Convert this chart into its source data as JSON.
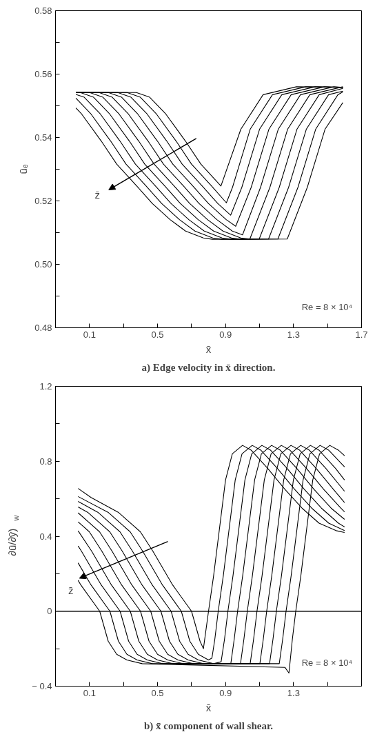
{
  "chart_data": [
    {
      "type": "line",
      "title": "a) Edge velocity in x̄ direction.",
      "xlabel": "x̄",
      "ylabel": "ūₑ",
      "xlim": [
        -0.1,
        1.7
      ],
      "xticks": [
        0.1,
        {
          "value": 0.3,
          "label": null
        },
        0.5,
        {
          "value": 0.7,
          "label": null
        },
        0.9,
        {
          "value": 1.1,
          "label": null
        },
        1.3,
        {
          "value": 1.5,
          "label": null
        },
        1.7
      ],
      "ylim": [
        0.48,
        0.58
      ],
      "yticks": [
        0.48,
        {
          "value": 0.49,
          "label": null
        },
        {
          "value": 0.5,
          "label": "0.50"
        },
        {
          "value": 0.51,
          "label": null
        },
        0.52,
        {
          "value": 0.53,
          "label": null
        },
        0.54,
        {
          "value": 0.55,
          "label": null
        },
        0.56,
        {
          "value": 0.57,
          "label": null
        },
        0.58
      ],
      "grid": false,
      "annotations": [
        "z̄",
        "Re = 8 × 10⁴"
      ],
      "series": [
        {
          "color": "#000000",
          "x": [
            0.02,
            0.376,
            0.454,
            0.546,
            0.664,
            0.755,
            0.873,
            0.99,
            1.121,
            1.317,
            1.59
          ],
          "values": [
            0.5542,
            0.5542,
            0.5527,
            0.5476,
            0.5389,
            0.5316,
            0.5247,
            0.5426,
            0.5535,
            0.556,
            0.5558
          ]
        },
        {
          "color": "#000000",
          "x": [
            0.02,
            0.321,
            0.399,
            0.491,
            0.609,
            0.7,
            0.818,
            0.905,
            0.941,
            1.045,
            1.176,
            1.372,
            1.59
          ],
          "values": [
            0.5542,
            0.5542,
            0.5527,
            0.5476,
            0.5389,
            0.5316,
            0.5247,
            0.5194,
            0.5243,
            0.5426,
            0.5535,
            0.556,
            0.5558
          ]
        },
        {
          "color": "#000000",
          "x": [
            0.02,
            0.266,
            0.344,
            0.436,
            0.554,
            0.645,
            0.763,
            0.854,
            0.93,
            0.996,
            1.1,
            1.231,
            1.427,
            1.59
          ],
          "values": [
            0.5542,
            0.5542,
            0.5527,
            0.5476,
            0.5389,
            0.5316,
            0.5247,
            0.5192,
            0.5155,
            0.5243,
            0.5426,
            0.5535,
            0.556,
            0.5558
          ]
        },
        {
          "color": "#000000",
          "x": [
            0.02,
            0.211,
            0.289,
            0.381,
            0.499,
            0.59,
            0.708,
            0.799,
            0.904,
            0.96,
            1.051,
            1.155,
            1.286,
            1.482,
            1.59
          ],
          "values": [
            0.5542,
            0.5542,
            0.5527,
            0.5476,
            0.5389,
            0.5316,
            0.5247,
            0.5192,
            0.5141,
            0.512,
            0.5243,
            0.5426,
            0.5535,
            0.556,
            0.5558
          ]
        },
        {
          "color": "#000000",
          "x": [
            0.02,
            0.156,
            0.234,
            0.326,
            0.444,
            0.535,
            0.653,
            0.744,
            0.849,
            0.94,
            1.0,
            1.106,
            1.21,
            1.341,
            1.537,
            1.59
          ],
          "values": [
            0.5542,
            0.5542,
            0.5527,
            0.5476,
            0.5389,
            0.5316,
            0.5247,
            0.5192,
            0.5141,
            0.5105,
            0.5093,
            0.5243,
            0.5426,
            0.5535,
            0.556,
            0.5558
          ]
        },
        {
          "color": "#000000",
          "x": [
            0.02,
            0.101,
            0.179,
            0.271,
            0.389,
            0.48,
            0.598,
            0.689,
            0.794,
            0.885,
            0.99,
            1.043,
            1.161,
            1.265,
            1.396,
            1.59
          ],
          "values": [
            0.5542,
            0.5542,
            0.5527,
            0.5476,
            0.5389,
            0.5316,
            0.5247,
            0.5192,
            0.5141,
            0.5105,
            0.5083,
            0.508,
            0.5243,
            0.5426,
            0.5535,
            0.556
          ]
        },
        {
          "color": "#000000",
          "x": [
            0.02,
            0.046,
            0.124,
            0.216,
            0.334,
            0.425,
            0.543,
            0.634,
            0.739,
            0.83,
            0.935,
            0.987,
            1.098,
            1.216,
            1.32,
            1.451,
            1.59
          ],
          "values": [
            0.5542,
            0.5542,
            0.5527,
            0.5476,
            0.5389,
            0.5316,
            0.5247,
            0.5192,
            0.5141,
            0.5105,
            0.5083,
            0.5079,
            0.508,
            0.5243,
            0.5426,
            0.5535,
            0.5555
          ]
        },
        {
          "color": "#000000",
          "x": [
            0.02,
            0.069,
            0.161,
            0.279,
            0.37,
            0.488,
            0.579,
            0.684,
            0.775,
            0.88,
            0.932,
            1.153,
            1.271,
            1.375,
            1.506,
            1.59
          ],
          "values": [
            0.5536,
            0.5527,
            0.5476,
            0.5389,
            0.5316,
            0.5247,
            0.5192,
            0.5141,
            0.5105,
            0.5083,
            0.5079,
            0.508,
            0.5243,
            0.5426,
            0.5535,
            0.5546
          ]
        },
        {
          "color": "#000000",
          "x": [
            0.02,
            0.106,
            0.224,
            0.315,
            0.433,
            0.524,
            0.629,
            0.72,
            0.825,
            0.877,
            1.208,
            1.326,
            1.43,
            1.561,
            1.59
          ],
          "values": [
            0.5524,
            0.5476,
            0.5389,
            0.5316,
            0.5247,
            0.5192,
            0.5141,
            0.5105,
            0.5083,
            0.5079,
            0.508,
            0.5243,
            0.5426,
            0.5535,
            0.5544
          ]
        },
        {
          "color": "#000000",
          "x": [
            0.02,
            0.051,
            0.169,
            0.26,
            0.378,
            0.469,
            0.574,
            0.665,
            0.77,
            0.822,
            1.263,
            1.381,
            1.485,
            1.59
          ],
          "values": [
            0.5493,
            0.5476,
            0.5389,
            0.5316,
            0.5247,
            0.5192,
            0.5141,
            0.5105,
            0.5083,
            0.5079,
            0.508,
            0.5243,
            0.5426,
            0.551
          ]
        }
      ]
    },
    {
      "type": "line",
      "title": "b) x̄ component of wall shear.",
      "xlabel": "x̄",
      "ylabel": "∂ū/∂ȳ)$_{w}$",
      "xlim": [
        -0.1,
        1.7
      ],
      "xticks": [
        0.1,
        {
          "value": 0.3,
          "label": null
        },
        0.5,
        {
          "value": 0.7,
          "label": null
        },
        0.9,
        {
          "value": 1.1,
          "label": null
        },
        1.3,
        {
          "value": 1.5,
          "label": null
        }
      ],
      "ylim": [
        -0.4,
        1.2
      ],
      "yticks": [
        {
          "value": -0.4,
          "label": "− 0.4"
        },
        {
          "value": -0.2,
          "label": null
        },
        0,
        {
          "value": 0.2,
          "label": null
        },
        0.4,
        {
          "value": 0.6,
          "label": null
        },
        0.8,
        {
          "value": 1.0,
          "label": null
        },
        1.2
      ],
      "grid": false,
      "ref_lines": [
        {
          "axis": "y",
          "value": 0,
          "color": "#000000"
        }
      ],
      "annotations": [
        "z̄",
        "Re = 8 × 10⁴"
      ],
      "series": [
        {
          "color": "#000000",
          "x": [
            0.033,
            0.109,
            0.269,
            0.399,
            0.473,
            0.589,
            0.7,
            0.75,
            0.77,
            0.8,
            0.83,
            0.9,
            0.94,
            1.0,
            1.05,
            1.15,
            1.25,
            1.35,
            1.45,
            1.55,
            1.6
          ],
          "values": [
            0.655,
            0.607,
            0.528,
            0.424,
            0.32,
            0.14,
            0,
            -0.16,
            -0.2,
            0,
            0.19,
            0.7,
            0.84,
            0.885,
            0.86,
            0.76,
            0.65,
            0.55,
            0.47,
            0.43,
            0.42
          ]
        },
        {
          "color": "#000000",
          "x": [
            0.033,
            0.209,
            0.339,
            0.413,
            0.529,
            0.64,
            0.69,
            0.74,
            0.8,
            0.82,
            0.837,
            0.857,
            0.887,
            0.957,
            0.997,
            1.057,
            1.107,
            1.207,
            1.307,
            1.407,
            1.507,
            1.6
          ],
          "values": [
            0.612,
            0.528,
            0.424,
            0.32,
            0.14,
            0,
            -0.16,
            -0.23,
            -0.26,
            -0.25,
            -0.15,
            0,
            0.19,
            0.7,
            0.84,
            0.885,
            0.86,
            0.76,
            0.65,
            0.55,
            0.47,
            0.43
          ]
        },
        {
          "color": "#000000",
          "x": [
            0.033,
            0.149,
            0.279,
            0.353,
            0.469,
            0.58,
            0.63,
            0.68,
            0.74,
            0.83,
            0.874,
            0.894,
            0.914,
            0.944,
            1.014,
            1.054,
            1.114,
            1.164,
            1.264,
            1.364,
            1.464,
            1.564,
            1.6
          ],
          "values": [
            0.586,
            0.528,
            0.424,
            0.32,
            0.14,
            0,
            -0.16,
            -0.23,
            -0.26,
            -0.28,
            -0.27,
            -0.15,
            0,
            0.19,
            0.7,
            0.84,
            0.885,
            0.86,
            0.76,
            0.65,
            0.55,
            0.47,
            0.45
          ]
        },
        {
          "color": "#000000",
          "x": [
            0.033,
            0.089,
            0.219,
            0.293,
            0.409,
            0.52,
            0.57,
            0.62,
            0.68,
            0.77,
            0.931,
            0.951,
            0.971,
            1.001,
            1.071,
            1.111,
            1.171,
            1.221,
            1.321,
            1.421,
            1.521,
            1.6
          ],
          "values": [
            0.556,
            0.528,
            0.424,
            0.32,
            0.14,
            0,
            -0.16,
            -0.23,
            -0.26,
            -0.28,
            -0.28,
            -0.15,
            0,
            0.19,
            0.7,
            0.84,
            0.885,
            0.86,
            0.76,
            0.65,
            0.55,
            0.49
          ]
        },
        {
          "color": "#000000",
          "x": [
            0.033,
            0.159,
            0.233,
            0.349,
            0.46,
            0.51,
            0.56,
            0.62,
            0.71,
            0.988,
            1.008,
            1.028,
            1.058,
            1.128,
            1.168,
            1.228,
            1.278,
            1.378,
            1.478,
            1.578,
            1.6
          ],
          "values": [
            0.525,
            0.424,
            0.32,
            0.14,
            0,
            -0.16,
            -0.23,
            -0.26,
            -0.28,
            -0.28,
            -0.15,
            0,
            0.19,
            0.7,
            0.84,
            0.885,
            0.86,
            0.76,
            0.65,
            0.55,
            0.53
          ]
        },
        {
          "color": "#000000",
          "x": [
            0.033,
            0.099,
            0.173,
            0.289,
            0.4,
            0.45,
            0.5,
            0.56,
            0.65,
            1.045,
            1.065,
            1.085,
            1.115,
            1.185,
            1.225,
            1.285,
            1.335,
            1.435,
            1.535,
            1.6
          ],
          "values": [
            0.477,
            0.424,
            0.32,
            0.14,
            0,
            -0.16,
            -0.23,
            -0.26,
            -0.28,
            -0.28,
            -0.15,
            0,
            0.19,
            0.7,
            0.84,
            0.885,
            0.86,
            0.76,
            0.65,
            0.58
          ]
        },
        {
          "color": "#000000",
          "x": [
            0.033,
            0.113,
            0.229,
            0.34,
            0.39,
            0.44,
            0.5,
            0.59,
            1.102,
            1.122,
            1.142,
            1.172,
            1.242,
            1.282,
            1.342,
            1.392,
            1.492,
            1.6
          ],
          "values": [
            0.429,
            0.32,
            0.14,
            0,
            -0.16,
            -0.23,
            -0.26,
            -0.28,
            -0.28,
            -0.15,
            0,
            0.19,
            0.7,
            0.84,
            0.885,
            0.86,
            0.76,
            0.64
          ]
        },
        {
          "color": "#000000",
          "x": [
            0.033,
            0.053,
            0.169,
            0.28,
            0.33,
            0.38,
            0.44,
            0.53,
            1.159,
            1.179,
            1.199,
            1.229,
            1.299,
            1.339,
            1.399,
            1.449,
            1.549,
            1.6
          ],
          "values": [
            0.348,
            0.32,
            0.14,
            0,
            -0.16,
            -0.23,
            -0.26,
            -0.28,
            -0.28,
            -0.15,
            0,
            0.19,
            0.7,
            0.84,
            0.885,
            0.86,
            0.76,
            0.7
          ]
        },
        {
          "color": "#000000",
          "x": [
            0.033,
            0.109,
            0.22,
            0.27,
            0.32,
            0.38,
            0.47,
            1.216,
            1.236,
            1.256,
            1.286,
            1.356,
            1.396,
            1.456,
            1.506,
            1.6
          ],
          "values": [
            0.258,
            0.14,
            0,
            -0.16,
            -0.23,
            -0.26,
            -0.28,
            -0.28,
            -0.15,
            0,
            0.19,
            0.7,
            0.84,
            0.885,
            0.86,
            0.77
          ]
        },
        {
          "color": "#000000",
          "x": [
            0.033,
            0.049,
            0.16,
            0.21,
            0.26,
            0.32,
            0.41,
            1.25,
            1.273,
            1.293,
            1.313,
            1.343,
            1.413,
            1.453,
            1.513,
            1.563,
            1.6
          ],
          "values": [
            0.165,
            0.14,
            0,
            -0.16,
            -0.23,
            -0.26,
            -0.28,
            -0.3,
            -0.33,
            -0.15,
            0,
            0.19,
            0.7,
            0.84,
            0.885,
            0.86,
            0.83
          ]
        }
      ]
    }
  ]
}
